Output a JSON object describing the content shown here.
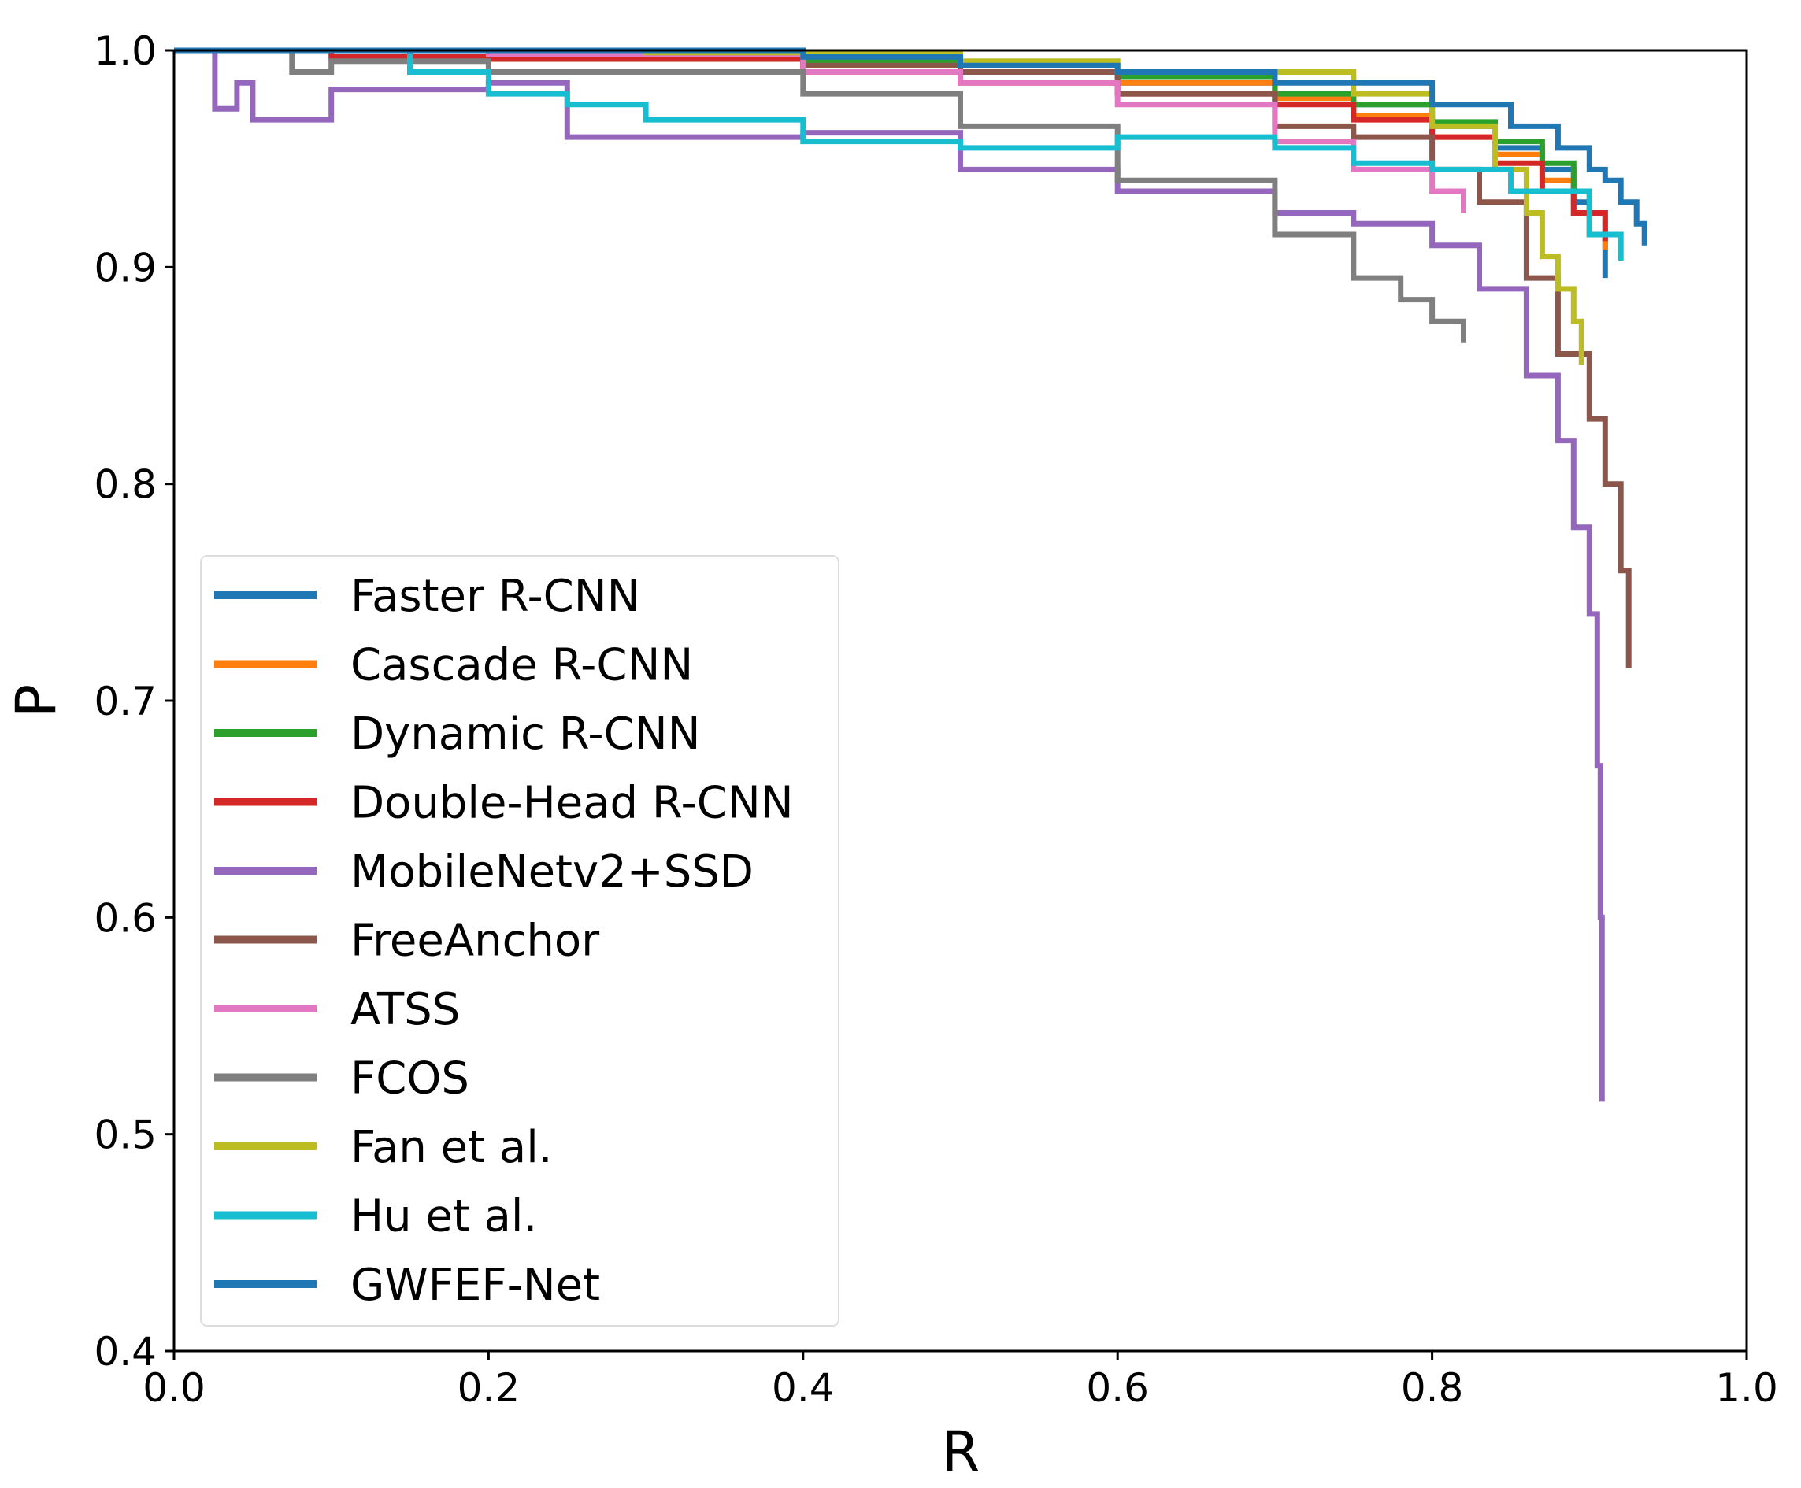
{
  "chart_data": {
    "type": "line",
    "title": "",
    "xlabel": "R",
    "ylabel": "P",
    "xlim": [
      0.0,
      1.0
    ],
    "ylim": [
      0.4,
      1.0
    ],
    "xticks": [
      "0.0",
      "0.2",
      "0.4",
      "0.6",
      "0.8",
      "1.0"
    ],
    "yticks": [
      "0.4",
      "0.5",
      "0.6",
      "0.7",
      "0.8",
      "0.9",
      "1.0"
    ],
    "grid": false,
    "legend_position": "lower-left",
    "series": [
      {
        "name": "Faster R-CNN",
        "color": "#1f77b4",
        "x": [
          0.0,
          0.1,
          0.2,
          0.3,
          0.4,
          0.5,
          0.6,
          0.7,
          0.75,
          0.8,
          0.84,
          0.87,
          0.89,
          0.9,
          0.91
        ],
        "y": [
          1.0,
          1.0,
          1.0,
          0.998,
          0.995,
          0.99,
          0.985,
          0.978,
          0.975,
          0.965,
          0.955,
          0.945,
          0.93,
          0.915,
          0.895
        ]
      },
      {
        "name": "Cascade R-CNN",
        "color": "#ff7f0e",
        "x": [
          0.0,
          0.2,
          0.4,
          0.5,
          0.6,
          0.7,
          0.75,
          0.8,
          0.84,
          0.87,
          0.89,
          0.9,
          0.91
        ],
        "y": [
          1.0,
          0.998,
          0.993,
          0.99,
          0.985,
          0.978,
          0.97,
          0.96,
          0.952,
          0.94,
          0.925,
          0.915,
          0.908
        ]
      },
      {
        "name": "Dynamic R-CNN",
        "color": "#2ca02c",
        "x": [
          0.0,
          0.2,
          0.4,
          0.5,
          0.6,
          0.7,
          0.75,
          0.8,
          0.84,
          0.87,
          0.89,
          0.9,
          0.91
        ],
        "y": [
          1.0,
          0.999,
          0.995,
          0.99,
          0.988,
          0.98,
          0.975,
          0.967,
          0.958,
          0.948,
          0.935,
          0.925,
          0.915
        ]
      },
      {
        "name": "Double-Head R-CNN",
        "color": "#d62728",
        "x": [
          0.0,
          0.1,
          0.2,
          0.4,
          0.5,
          0.6,
          0.7,
          0.75,
          0.8,
          0.84,
          0.87,
          0.89,
          0.91
        ],
        "y": [
          1.0,
          0.997,
          0.996,
          0.99,
          0.985,
          0.98,
          0.975,
          0.968,
          0.96,
          0.948,
          0.935,
          0.925,
          0.912
        ]
      },
      {
        "name": "MobileNetv2+SSD",
        "color": "#9467bd",
        "x": [
          0.0,
          0.025,
          0.026,
          0.04,
          0.05,
          0.1,
          0.2,
          0.25,
          0.4,
          0.5,
          0.6,
          0.7,
          0.75,
          0.8,
          0.83,
          0.86,
          0.88,
          0.89,
          0.9,
          0.905,
          0.907,
          0.908
        ],
        "y": [
          1.0,
          1.0,
          0.973,
          0.985,
          0.968,
          0.982,
          0.985,
          0.96,
          0.962,
          0.945,
          0.935,
          0.925,
          0.92,
          0.91,
          0.89,
          0.85,
          0.82,
          0.78,
          0.74,
          0.67,
          0.6,
          0.515
        ]
      },
      {
        "name": "FreeAnchor",
        "color": "#8c564b",
        "x": [
          0.0,
          0.2,
          0.4,
          0.5,
          0.6,
          0.7,
          0.75,
          0.8,
          0.83,
          0.86,
          0.88,
          0.9,
          0.91,
          0.92,
          0.925
        ],
        "y": [
          1.0,
          0.998,
          0.993,
          0.99,
          0.98,
          0.965,
          0.96,
          0.945,
          0.93,
          0.895,
          0.86,
          0.83,
          0.8,
          0.76,
          0.715
        ]
      },
      {
        "name": "ATSS",
        "color": "#e377c2",
        "x": [
          0.0,
          0.2,
          0.4,
          0.5,
          0.6,
          0.7,
          0.75,
          0.8,
          0.82
        ],
        "y": [
          1.0,
          0.998,
          0.99,
          0.985,
          0.975,
          0.958,
          0.945,
          0.935,
          0.925
        ]
      },
      {
        "name": "FCOS",
        "color": "#7f7f7f",
        "x": [
          0.0,
          0.07,
          0.075,
          0.1,
          0.2,
          0.3,
          0.4,
          0.5,
          0.6,
          0.7,
          0.75,
          0.78,
          0.8,
          0.82
        ],
        "y": [
          1.0,
          1.0,
          0.99,
          0.995,
          0.99,
          0.99,
          0.98,
          0.965,
          0.94,
          0.915,
          0.895,
          0.885,
          0.875,
          0.865
        ]
      },
      {
        "name": "Fan et al.",
        "color": "#bcbd22",
        "x": [
          0.0,
          0.3,
          0.5,
          0.6,
          0.7,
          0.75,
          0.8,
          0.84,
          0.86,
          0.87,
          0.88,
          0.89,
          0.895
        ],
        "y": [
          1.0,
          0.999,
          0.995,
          0.99,
          0.99,
          0.98,
          0.965,
          0.945,
          0.925,
          0.905,
          0.89,
          0.875,
          0.855
        ]
      },
      {
        "name": "Hu et al.",
        "color": "#17becf",
        "x": [
          0.0,
          0.1,
          0.15,
          0.2,
          0.25,
          0.3,
          0.4,
          0.5,
          0.6,
          0.7,
          0.75,
          0.8,
          0.85,
          0.9,
          0.92
        ],
        "y": [
          1.0,
          1.0,
          0.99,
          0.98,
          0.975,
          0.968,
          0.958,
          0.955,
          0.96,
          0.955,
          0.948,
          0.945,
          0.935,
          0.915,
          0.903
        ]
      },
      {
        "name": "GWFEF-Net",
        "color": "#1f77b4",
        "x": [
          0.0,
          0.2,
          0.4,
          0.5,
          0.6,
          0.7,
          0.8,
          0.85,
          0.88,
          0.9,
          0.91,
          0.92,
          0.93,
          0.935
        ],
        "y": [
          1.0,
          1.0,
          0.997,
          0.993,
          0.99,
          0.985,
          0.975,
          0.965,
          0.955,
          0.945,
          0.94,
          0.93,
          0.92,
          0.91
        ]
      }
    ]
  }
}
